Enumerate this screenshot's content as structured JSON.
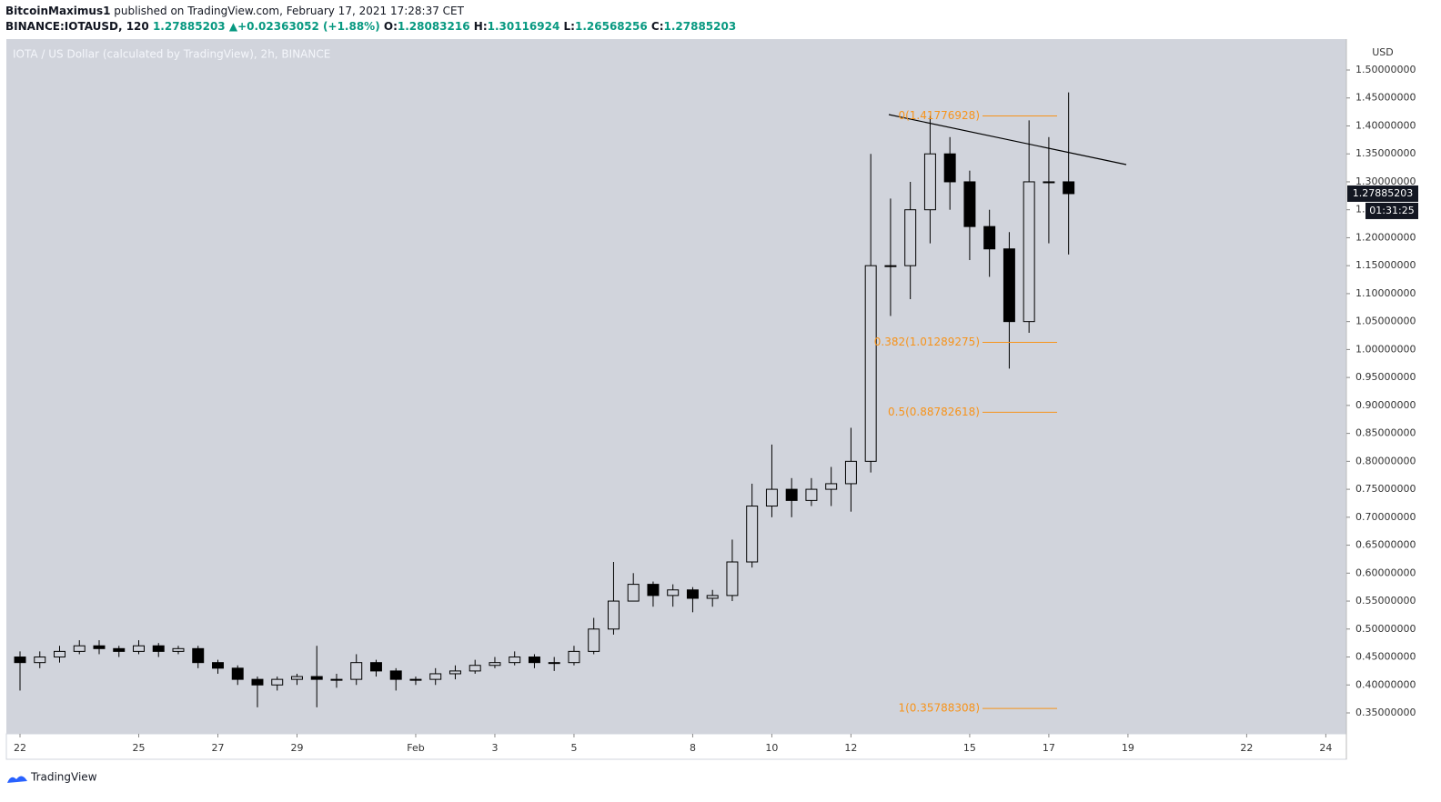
{
  "header": {
    "author": "BitcoinMaximus1",
    "published": "published on TradingView.com, February 17, 2021 17:28:37 CET",
    "symbol": "BINANCE:IOTAUSD, 120",
    "last": "1.27885203",
    "change": "▲+0.02363052 (+1.88%)",
    "ohlc": [
      {
        "label": "O:",
        "value": "1.28083216"
      },
      {
        "label": "H:",
        "value": "1.30116924"
      },
      {
        "label": "L:",
        "value": "1.26568256"
      },
      {
        "label": "C:",
        "value": "1.27885203"
      }
    ]
  },
  "chart_data": {
    "type": "candlestick",
    "title": "IOTA / US Dollar (calculated by TradingView), 2h, BINANCE",
    "y_label": "USD",
    "countdown": "01:31:25",
    "up_fill": "#d1d4dc",
    "down_fill": "#000000",
    "color": "#000000",
    "x": [
      0,
      0.5,
      1,
      1.5,
      2,
      2.5,
      3,
      3.5,
      4,
      4.5,
      5,
      5.5,
      6,
      6.5,
      7,
      7.5,
      8,
      8.5,
      9,
      9.5,
      10,
      10.5,
      11,
      11.5,
      12,
      12.5,
      13,
      13.5,
      14,
      14.5,
      15,
      15.5,
      16,
      16.5,
      17,
      17.5,
      18,
      18.5,
      19,
      19.5,
      20,
      20.5,
      21,
      21.5,
      22,
      22.5,
      23,
      23.5,
      24,
      24.5,
      25,
      25.5,
      26,
      26.5
    ],
    "open": [
      0.45,
      0.44,
      0.45,
      0.46,
      0.47,
      0.465,
      0.46,
      0.47,
      0.46,
      0.465,
      0.44,
      0.43,
      0.41,
      0.4,
      0.41,
      0.415,
      0.41,
      0.41,
      0.44,
      0.425,
      0.41,
      0.41,
      0.42,
      0.425,
      0.435,
      0.44,
      0.45,
      0.44,
      0.44,
      0.46,
      0.5,
      0.55,
      0.58,
      0.56,
      0.57,
      0.555,
      0.56,
      0.62,
      0.72,
      0.75,
      0.73,
      0.75,
      0.76,
      0.8,
      1.15,
      1.15,
      1.25,
      1.35,
      1.3,
      1.22,
      1.18,
      1.05,
      1.3,
      1.3
    ],
    "high": [
      0.46,
      0.46,
      0.47,
      0.48,
      0.48,
      0.47,
      0.48,
      0.475,
      0.47,
      0.47,
      0.445,
      0.435,
      0.415,
      0.415,
      0.42,
      0.47,
      0.42,
      0.455,
      0.445,
      0.43,
      0.415,
      0.43,
      0.435,
      0.445,
      0.45,
      0.46,
      0.455,
      0.45,
      0.47,
      0.52,
      0.62,
      0.6,
      0.585,
      0.58,
      0.575,
      0.57,
      0.66,
      0.76,
      0.83,
      0.77,
      0.77,
      0.79,
      0.86,
      1.35,
      1.27,
      1.3,
      1.41776928,
      1.38,
      1.32,
      1.25,
      1.21,
      1.41,
      1.38,
      1.46
    ],
    "low": [
      0.39,
      0.43,
      0.44,
      0.455,
      0.455,
      0.45,
      0.455,
      0.45,
      0.455,
      0.43,
      0.42,
      0.4,
      0.36,
      0.39,
      0.4,
      0.36,
      0.395,
      0.4,
      0.415,
      0.39,
      0.4,
      0.4,
      0.41,
      0.42,
      0.43,
      0.435,
      0.43,
      0.425,
      0.435,
      0.455,
      0.49,
      0.55,
      0.54,
      0.54,
      0.53,
      0.54,
      0.55,
      0.61,
      0.7,
      0.7,
      0.72,
      0.72,
      0.71,
      0.78,
      1.06,
      1.09,
      1.19,
      1.25,
      1.16,
      1.13,
      0.96578,
      1.03,
      1.19,
      1.17
    ],
    "close": [
      0.44,
      0.45,
      0.46,
      0.47,
      0.465,
      0.46,
      0.47,
      0.46,
      0.465,
      0.44,
      0.43,
      0.41,
      0.4,
      0.41,
      0.415,
      0.41,
      0.41,
      0.44,
      0.425,
      0.41,
      0.41,
      0.42,
      0.425,
      0.435,
      0.44,
      0.45,
      0.44,
      0.44,
      0.46,
      0.5,
      0.55,
      0.58,
      0.56,
      0.57,
      0.555,
      0.56,
      0.62,
      0.72,
      0.75,
      0.73,
      0.75,
      0.76,
      0.8,
      1.15,
      1.15,
      1.25,
      1.35,
      1.3,
      1.22,
      1.18,
      1.05,
      1.3,
      1.3,
      1.27885203
    ],
    "xlim": [
      -0.345,
      33.52
    ],
    "xticks": [
      {
        "value": 0,
        "label": "22"
      },
      {
        "value": 3,
        "label": "25"
      },
      {
        "value": 5,
        "label": "27"
      },
      {
        "value": 7,
        "label": "29"
      },
      {
        "value": 10,
        "label": "Feb"
      },
      {
        "value": 12,
        "label": "3"
      },
      {
        "value": 14,
        "label": "5"
      },
      {
        "value": 17,
        "label": "8"
      },
      {
        "value": 19,
        "label": "10"
      },
      {
        "value": 21,
        "label": "12"
      },
      {
        "value": 24,
        "label": "15"
      },
      {
        "value": 26,
        "label": "17"
      },
      {
        "value": 28,
        "label": "19"
      },
      {
        "value": 31,
        "label": "22"
      },
      {
        "value": 33,
        "label": "24"
      }
    ],
    "ylim": [
      0.3126,
      1.5553
    ],
    "yticks": [
      {
        "value": 0.35,
        "label": "0.35000000"
      },
      {
        "value": 0.4,
        "label": "0.40000000"
      },
      {
        "value": 0.45,
        "label": "0.45000000"
      },
      {
        "value": 0.5,
        "label": "0.50000000"
      },
      {
        "value": 0.55,
        "label": "0.55000000"
      },
      {
        "value": 0.6,
        "label": "0.60000000"
      },
      {
        "value": 0.65,
        "label": "0.65000000"
      },
      {
        "value": 0.7,
        "label": "0.70000000"
      },
      {
        "value": 0.75,
        "label": "0.75000000"
      },
      {
        "value": 0.8,
        "label": "0.80000000"
      },
      {
        "value": 0.85,
        "label": "0.85000000"
      },
      {
        "value": 0.9,
        "label": "0.90000000"
      },
      {
        "value": 0.95,
        "label": "0.95000000"
      },
      {
        "value": 1.0,
        "label": "1.00000000"
      },
      {
        "value": 1.05,
        "label": "1.05000000"
      },
      {
        "value": 1.1,
        "label": "1.10000000"
      },
      {
        "value": 1.15,
        "label": "1.15000000"
      },
      {
        "value": 1.2,
        "label": "1.20000000"
      },
      {
        "value": 1.25,
        "label": "1.25000000"
      },
      {
        "value": 1.3,
        "label": "1.30000000"
      },
      {
        "value": 1.35,
        "label": "1.35000000"
      },
      {
        "value": 1.4,
        "label": "1.40000000"
      },
      {
        "value": 1.45,
        "label": "1.45000000"
      },
      {
        "value": 1.5,
        "label": "1.50000000"
      }
    ],
    "fib_color": "#f7931a",
    "fib": [
      {
        "label": "0(1.41776928)",
        "value": 1.41776928
      },
      {
        "label": "0.382(1.01289275)",
        "value": 1.01289275
      },
      {
        "label": "0.5(0.88782618)",
        "value": 0.88782618
      },
      {
        "label": "1(0.35788308)",
        "value": 0.35788308
      }
    ]
  },
  "footer": "TradingView"
}
